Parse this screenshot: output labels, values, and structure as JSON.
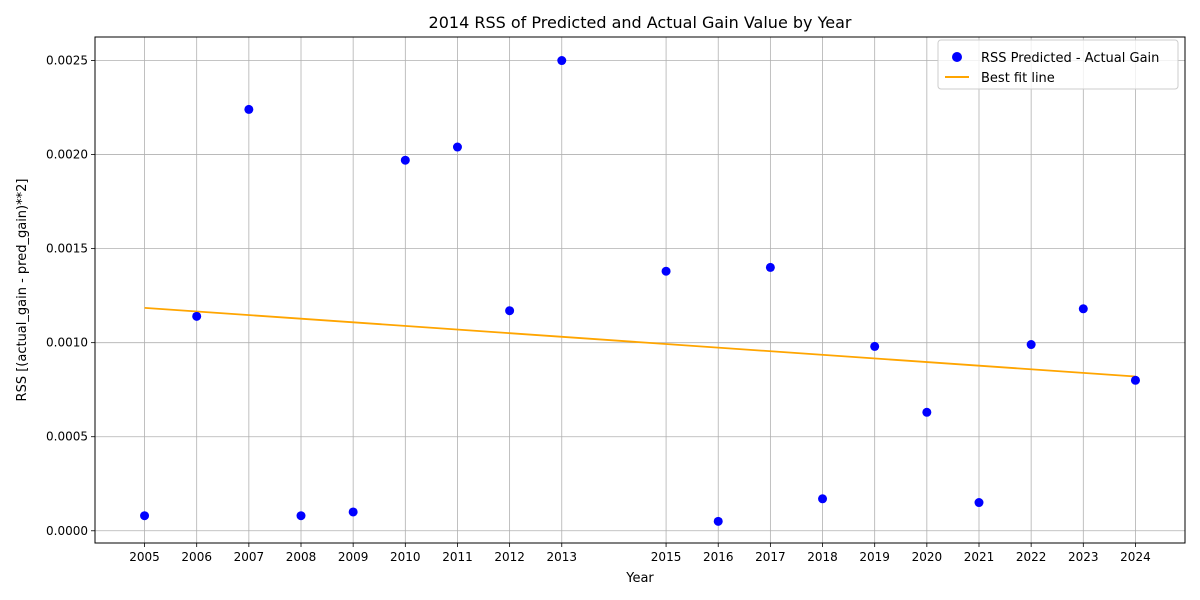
{
  "chart_data": {
    "type": "scatter",
    "title": "2014 RSS of Predicted and Actual Gain Value by Year",
    "xlabel": "Year",
    "ylabel": "RSS [(actual_gain - pred_gain)**2]",
    "x_ticks": [
      2005,
      2006,
      2007,
      2008,
      2009,
      2010,
      2011,
      2012,
      2013,
      2015,
      2016,
      2017,
      2018,
      2019,
      2020,
      2021,
      2022,
      2023,
      2024
    ],
    "y_ticks": [
      "0.0000",
      "0.0005",
      "0.0010",
      "0.0015",
      "0.0020",
      "0.0025"
    ],
    "xlim": [
      2004.05,
      2024.95
    ],
    "ylim": [
      -6.5e-05,
      0.002625
    ],
    "grid": true,
    "legend_position": "top-right",
    "series": [
      {
        "name": "RSS Predicted - Actual Gain",
        "kind": "scatter",
        "color": "#0000ff",
        "x": [
          2005,
          2006,
          2007,
          2008,
          2009,
          2010,
          2011,
          2012,
          2013,
          2015,
          2016,
          2017,
          2018,
          2019,
          2020,
          2021,
          2022,
          2023,
          2024
        ],
        "y": [
          8e-05,
          0.00114,
          0.00224,
          8e-05,
          0.0001,
          0.00197,
          0.00204,
          0.00117,
          0.0025,
          0.00138,
          5e-05,
          0.0014,
          0.00017,
          0.00098,
          0.00063,
          0.00015,
          0.00099,
          0.00118,
          0.0008
        ]
      },
      {
        "name": "Best fit line",
        "kind": "line",
        "color": "#ffa500",
        "x": [
          2005,
          2024
        ],
        "y": [
          0.001185,
          0.00082
        ]
      }
    ]
  }
}
